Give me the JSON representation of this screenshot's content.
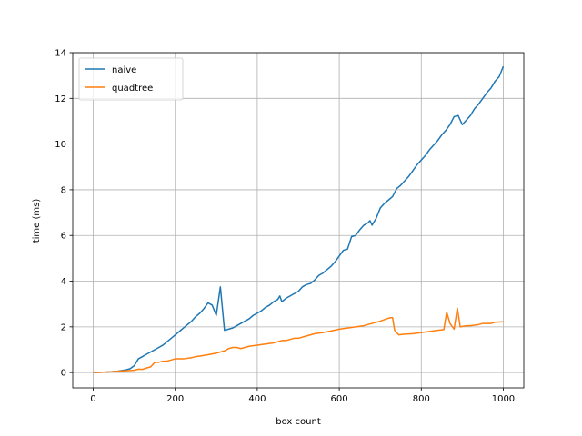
{
  "chart_data": {
    "type": "line",
    "title": "",
    "xlabel": "box count",
    "ylabel": "time (ms)",
    "xlim": [
      -50,
      1050
    ],
    "ylim": [
      -0.67,
      14.0
    ],
    "xticks": [
      0,
      200,
      400,
      600,
      800,
      1000
    ],
    "yticks": [
      0,
      2,
      4,
      6,
      8,
      10,
      12,
      14
    ],
    "grid": true,
    "legend": "top-left",
    "series": [
      {
        "name": "naive",
        "color": "#1f77b4",
        "points": [
          [
            0,
            0
          ],
          [
            20,
            0.01
          ],
          [
            40,
            0.03
          ],
          [
            60,
            0.06
          ],
          [
            80,
            0.12
          ],
          [
            90,
            0.17
          ],
          [
            100,
            0.3
          ],
          [
            110,
            0.6
          ],
          [
            120,
            0.7
          ],
          [
            130,
            0.8
          ],
          [
            140,
            0.9
          ],
          [
            150,
            1.0
          ],
          [
            160,
            1.1
          ],
          [
            170,
            1.2
          ],
          [
            180,
            1.35
          ],
          [
            190,
            1.5
          ],
          [
            200,
            1.65
          ],
          [
            210,
            1.8
          ],
          [
            220,
            1.95
          ],
          [
            230,
            2.1
          ],
          [
            240,
            2.25
          ],
          [
            250,
            2.45
          ],
          [
            260,
            2.6
          ],
          [
            270,
            2.8
          ],
          [
            280,
            3.05
          ],
          [
            290,
            2.95
          ],
          [
            300,
            2.5
          ],
          [
            310,
            3.75
          ],
          [
            320,
            1.85
          ],
          [
            330,
            1.9
          ],
          [
            340,
            1.95
          ],
          [
            350,
            2.05
          ],
          [
            360,
            2.15
          ],
          [
            370,
            2.25
          ],
          [
            380,
            2.35
          ],
          [
            390,
            2.5
          ],
          [
            400,
            2.6
          ],
          [
            410,
            2.7
          ],
          [
            420,
            2.85
          ],
          [
            430,
            2.95
          ],
          [
            440,
            3.1
          ],
          [
            450,
            3.2
          ],
          [
            455,
            3.35
          ],
          [
            460,
            3.1
          ],
          [
            470,
            3.25
          ],
          [
            480,
            3.35
          ],
          [
            490,
            3.45
          ],
          [
            500,
            3.55
          ],
          [
            510,
            3.75
          ],
          [
            520,
            3.85
          ],
          [
            530,
            3.9
          ],
          [
            540,
            4.05
          ],
          [
            550,
            4.25
          ],
          [
            560,
            4.35
          ],
          [
            570,
            4.5
          ],
          [
            580,
            4.65
          ],
          [
            590,
            4.85
          ],
          [
            600,
            5.1
          ],
          [
            610,
            5.35
          ],
          [
            620,
            5.4
          ],
          [
            630,
            5.95
          ],
          [
            640,
            6.0
          ],
          [
            650,
            6.25
          ],
          [
            660,
            6.45
          ],
          [
            670,
            6.55
          ],
          [
            675,
            6.65
          ],
          [
            680,
            6.45
          ],
          [
            690,
            6.75
          ],
          [
            700,
            7.2
          ],
          [
            710,
            7.4
          ],
          [
            720,
            7.55
          ],
          [
            730,
            7.7
          ],
          [
            740,
            8.05
          ],
          [
            750,
            8.2
          ],
          [
            760,
            8.4
          ],
          [
            770,
            8.6
          ],
          [
            780,
            8.85
          ],
          [
            790,
            9.1
          ],
          [
            800,
            9.3
          ],
          [
            810,
            9.5
          ],
          [
            820,
            9.75
          ],
          [
            830,
            9.95
          ],
          [
            840,
            10.15
          ],
          [
            850,
            10.4
          ],
          [
            860,
            10.6
          ],
          [
            870,
            10.85
          ],
          [
            880,
            11.2
          ],
          [
            890,
            11.25
          ],
          [
            900,
            10.85
          ],
          [
            910,
            11.05
          ],
          [
            920,
            11.25
          ],
          [
            930,
            11.55
          ],
          [
            940,
            11.75
          ],
          [
            950,
            12.0
          ],
          [
            960,
            12.25
          ],
          [
            970,
            12.45
          ],
          [
            980,
            12.75
          ],
          [
            990,
            12.95
          ],
          [
            1000,
            13.4
          ]
        ]
      },
      {
        "name": "quadtree",
        "color": "#ff7f0e",
        "points": [
          [
            0,
            0
          ],
          [
            20,
            0.01
          ],
          [
            40,
            0.03
          ],
          [
            60,
            0.06
          ],
          [
            80,
            0.08
          ],
          [
            100,
            0.1
          ],
          [
            110,
            0.15
          ],
          [
            120,
            0.14
          ],
          [
            130,
            0.2
          ],
          [
            140,
            0.25
          ],
          [
            150,
            0.45
          ],
          [
            160,
            0.45
          ],
          [
            170,
            0.5
          ],
          [
            180,
            0.5
          ],
          [
            190,
            0.55
          ],
          [
            200,
            0.6
          ],
          [
            220,
            0.6
          ],
          [
            240,
            0.65
          ],
          [
            250,
            0.7
          ],
          [
            260,
            0.72
          ],
          [
            280,
            0.78
          ],
          [
            300,
            0.85
          ],
          [
            310,
            0.9
          ],
          [
            320,
            0.95
          ],
          [
            330,
            1.05
          ],
          [
            340,
            1.1
          ],
          [
            350,
            1.1
          ],
          [
            360,
            1.05
          ],
          [
            370,
            1.1
          ],
          [
            380,
            1.15
          ],
          [
            400,
            1.2
          ],
          [
            420,
            1.25
          ],
          [
            440,
            1.3
          ],
          [
            460,
            1.4
          ],
          [
            470,
            1.4
          ],
          [
            480,
            1.45
          ],
          [
            490,
            1.5
          ],
          [
            500,
            1.5
          ],
          [
            520,
            1.6
          ],
          [
            540,
            1.7
          ],
          [
            560,
            1.75
          ],
          [
            580,
            1.82
          ],
          [
            600,
            1.9
          ],
          [
            620,
            1.95
          ],
          [
            640,
            2.0
          ],
          [
            660,
            2.05
          ],
          [
            680,
            2.15
          ],
          [
            700,
            2.25
          ],
          [
            715,
            2.35
          ],
          [
            725,
            2.4
          ],
          [
            730,
            2.4
          ],
          [
            735,
            1.85
          ],
          [
            745,
            1.65
          ],
          [
            760,
            1.68
          ],
          [
            780,
            1.7
          ],
          [
            800,
            1.75
          ],
          [
            820,
            1.8
          ],
          [
            840,
            1.85
          ],
          [
            855,
            1.88
          ],
          [
            862,
            2.65
          ],
          [
            870,
            2.15
          ],
          [
            880,
            1.9
          ],
          [
            888,
            2.82
          ],
          [
            895,
            2.0
          ],
          [
            910,
            2.05
          ],
          [
            920,
            2.05
          ],
          [
            940,
            2.1
          ],
          [
            950,
            2.15
          ],
          [
            960,
            2.15
          ],
          [
            970,
            2.15
          ],
          [
            980,
            2.2
          ],
          [
            1000,
            2.22
          ]
        ]
      }
    ]
  }
}
